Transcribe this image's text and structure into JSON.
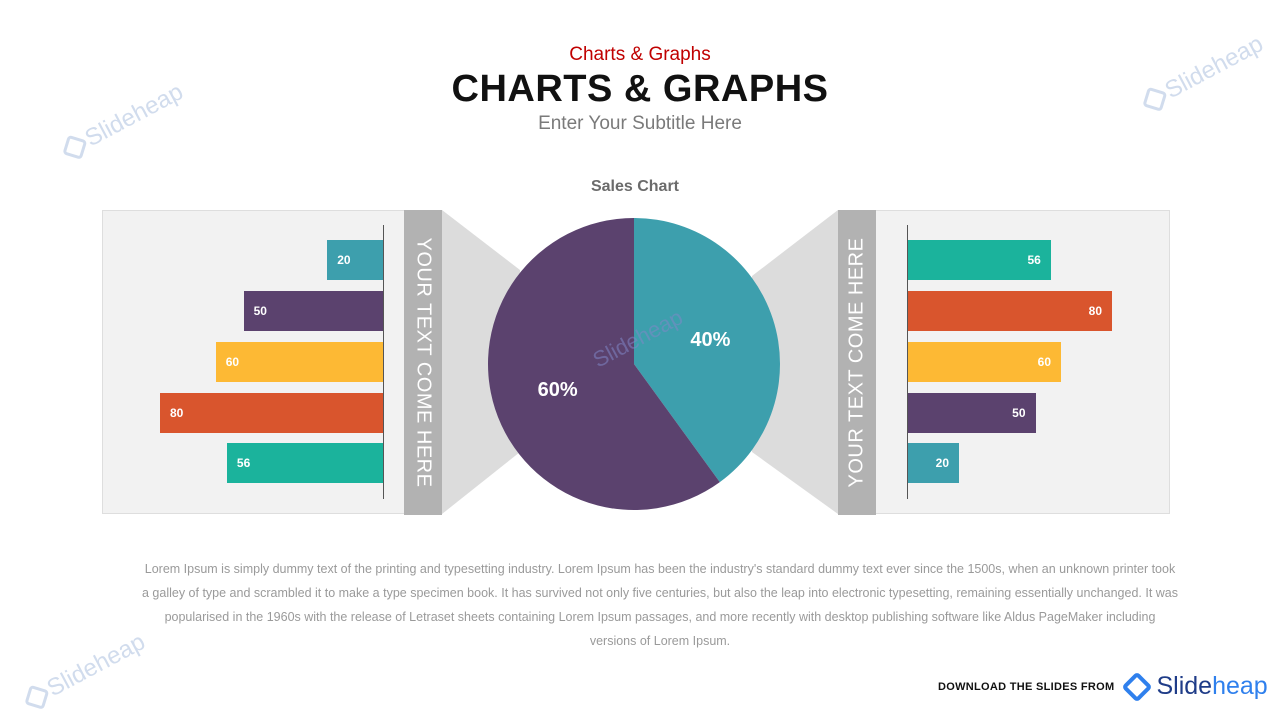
{
  "header": {
    "eyebrow": "Charts & Graphs",
    "title": "CHARTS & GRAPHS",
    "subtitle": "Enter Your Subtitle Here"
  },
  "panels": {
    "left_label": "YOUR TEXT COME HERE",
    "right_label": "YOUR TEXT COME HERE"
  },
  "chart_data": [
    {
      "type": "pie",
      "title": "Sales Chart",
      "slices": [
        {
          "label": "40%",
          "value": 40,
          "color": "#3d9fad"
        },
        {
          "label": "60%",
          "value": 60,
          "color": "#5b426e"
        }
      ]
    },
    {
      "type": "bar",
      "orientation": "horizontal",
      "direction": "right-to-left",
      "xlim": [
        0,
        80
      ],
      "values": [
        20,
        50,
        60,
        80,
        56
      ],
      "colors": [
        "#3d9fad",
        "#5b426e",
        "#fdb934",
        "#d9552d",
        "#1bb39c"
      ]
    },
    {
      "type": "bar",
      "orientation": "horizontal",
      "direction": "left-to-right",
      "xlim": [
        0,
        80
      ],
      "values": [
        56,
        80,
        60,
        50,
        20
      ],
      "colors": [
        "#1bb39c",
        "#d9552d",
        "#fdb934",
        "#5b426e",
        "#3d9fad"
      ]
    }
  ],
  "body_text": "Lorem Ipsum is simply dummy text of the printing and typesetting industry. Lorem Ipsum has been the industry's standard dummy text ever since the 1500s, when an unknown printer took a galley of type and scrambled it to make a type specimen book. It has survived not only five centuries, but also the leap into electronic typesetting, remaining essentially unchanged. It was popularised in the 1960s with the release of Letraset sheets containing Lorem Ipsum passages, and more recently with desktop publishing software like Aldus PageMaker including versions of Lorem Ipsum.",
  "watermark": "Slideheap",
  "footer": {
    "download_text": "DOWNLOAD THE SLIDES FROM",
    "logo_slide": "Slide",
    "logo_heap": "heap"
  }
}
